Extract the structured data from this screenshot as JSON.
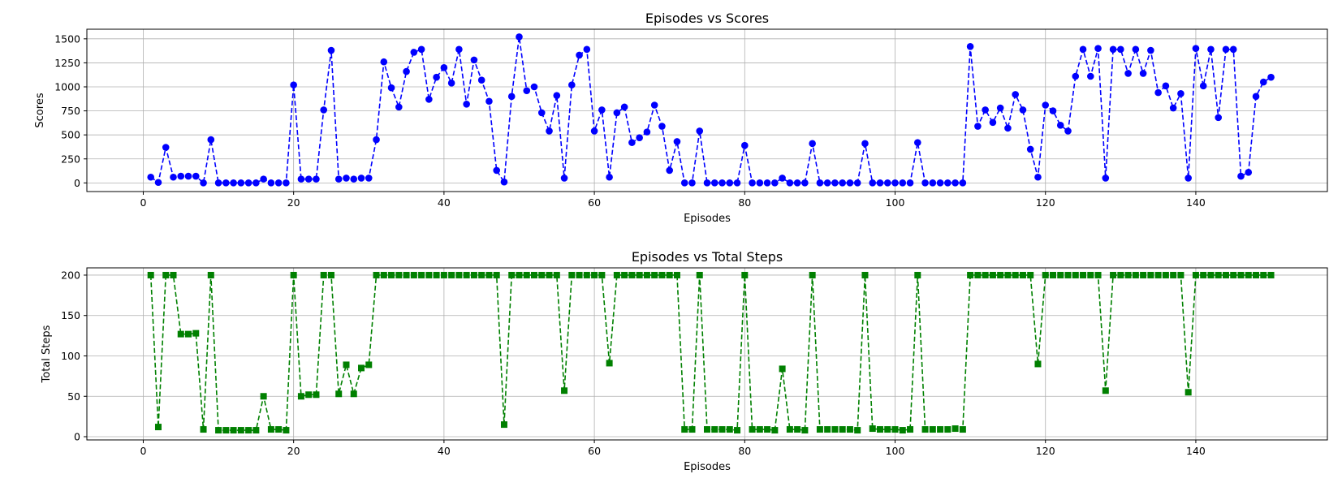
{
  "chart_data": [
    {
      "type": "line",
      "title": "Episodes vs Scores",
      "xlabel": "Episodes",
      "ylabel": "Scores",
      "xlim": [
        -7.5,
        157.5
      ],
      "ylim": [
        -90,
        1600
      ],
      "xticks": [
        0,
        20,
        40,
        60,
        80,
        100,
        120,
        140
      ],
      "yticks": [
        0,
        250,
        500,
        750,
        1000,
        1250,
        1500
      ],
      "grid": true,
      "color": "#0000ff",
      "marker": "circle",
      "line_style": "dashed",
      "series": [
        {
          "x": [
            1,
            2,
            3,
            4,
            5,
            6,
            7,
            8,
            9,
            10,
            11,
            12,
            13,
            14,
            15,
            16,
            17,
            18,
            19,
            20,
            21,
            22,
            23,
            24,
            25,
            26,
            27,
            28,
            29,
            30,
            31,
            32,
            33,
            34,
            35,
            36,
            37,
            38,
            39,
            40,
            41,
            42,
            43,
            44,
            45,
            46,
            47,
            48,
            49,
            50,
            51,
            52,
            53,
            54,
            55,
            56,
            57,
            58,
            59,
            60,
            61,
            62,
            63,
            64,
            65,
            66,
            67,
            68,
            69,
            70,
            71,
            72,
            73,
            74,
            75,
            76,
            77,
            78,
            79,
            80,
            81,
            82,
            83,
            84,
            85,
            86,
            87,
            88,
            89,
            90,
            91,
            92,
            93,
            94,
            95,
            96,
            97,
            98,
            99,
            100,
            101,
            102,
            103,
            104,
            105,
            106,
            107,
            108,
            109,
            110,
            111,
            112,
            113,
            114,
            115,
            116,
            117,
            118,
            119,
            120,
            121,
            122,
            123,
            124,
            125,
            126,
            127,
            128,
            129,
            130,
            131,
            132,
            133,
            134,
            135,
            136,
            137,
            138,
            139,
            140,
            141,
            142,
            143,
            144,
            145,
            146,
            147,
            148,
            149,
            150
          ],
          "y": [
            60,
            5,
            370,
            60,
            70,
            70,
            70,
            0,
            450,
            0,
            0,
            0,
            0,
            0,
            0,
            40,
            0,
            0,
            0,
            1020,
            40,
            40,
            40,
            760,
            1380,
            40,
            50,
            40,
            50,
            50,
            450,
            1260,
            990,
            790,
            1160,
            1360,
            1390,
            870,
            1100,
            1200,
            1040,
            1390,
            820,
            1280,
            1070,
            850,
            130,
            10,
            900,
            1520,
            960,
            1000,
            730,
            540,
            910,
            50,
            1020,
            1330,
            1390,
            540,
            760,
            60,
            730,
            790,
            420,
            470,
            530,
            810,
            590,
            130,
            430,
            0,
            0,
            540,
            0,
            0,
            0,
            0,
            0,
            390,
            0,
            0,
            0,
            0,
            50,
            0,
            0,
            0,
            410,
            0,
            0,
            0,
            0,
            0,
            0,
            410,
            0,
            0,
            0,
            0,
            0,
            0,
            420,
            0,
            0,
            0,
            0,
            0,
            0,
            1420,
            590,
            760,
            630,
            780,
            570,
            920,
            760,
            350,
            60,
            810,
            750,
            600,
            540,
            1110,
            1390,
            1110,
            1400,
            50,
            1390,
            1390,
            1140,
            1390,
            1140,
            1380,
            940,
            1010,
            780,
            930,
            50,
            1400,
            1010,
            1390,
            680,
            1390,
            1390,
            70,
            110,
            900,
            1050,
            1100
          ]
        }
      ]
    },
    {
      "type": "line",
      "title": "Episodes vs Total Steps",
      "xlabel": "Episodes",
      "ylabel": "Total Steps",
      "xlim": [
        -7.5,
        157.5
      ],
      "ylim": [
        -4,
        209
      ],
      "xticks": [
        0,
        20,
        40,
        60,
        80,
        100,
        120,
        140
      ],
      "yticks": [
        0,
        50,
        100,
        150,
        200
      ],
      "grid": true,
      "color": "#008000",
      "marker": "square",
      "line_style": "dashed",
      "series": [
        {
          "x": [
            1,
            2,
            3,
            4,
            5,
            6,
            7,
            8,
            9,
            10,
            11,
            12,
            13,
            14,
            15,
            16,
            17,
            18,
            19,
            20,
            21,
            22,
            23,
            24,
            25,
            26,
            27,
            28,
            29,
            30,
            31,
            32,
            33,
            34,
            35,
            36,
            37,
            38,
            39,
            40,
            41,
            42,
            43,
            44,
            45,
            46,
            47,
            48,
            49,
            50,
            51,
            52,
            53,
            54,
            55,
            56,
            57,
            58,
            59,
            60,
            61,
            62,
            63,
            64,
            65,
            66,
            67,
            68,
            69,
            70,
            71,
            72,
            73,
            74,
            75,
            76,
            77,
            78,
            79,
            80,
            81,
            82,
            83,
            84,
            85,
            86,
            87,
            88,
            89,
            90,
            91,
            92,
            93,
            94,
            95,
            96,
            97,
            98,
            99,
            100,
            101,
            102,
            103,
            104,
            105,
            106,
            107,
            108,
            109,
            110,
            111,
            112,
            113,
            114,
            115,
            116,
            117,
            118,
            119,
            120,
            121,
            122,
            123,
            124,
            125,
            126,
            127,
            128,
            129,
            130,
            131,
            132,
            133,
            134,
            135,
            136,
            137,
            138,
            139,
            140,
            141,
            142,
            143,
            144,
            145,
            146,
            147,
            148,
            149,
            150
          ],
          "y": [
            200,
            12,
            200,
            200,
            127,
            127,
            128,
            9,
            200,
            8,
            8,
            8,
            8,
            8,
            8,
            50,
            9,
            9,
            8,
            200,
            50,
            52,
            52,
            200,
            200,
            53,
            89,
            53,
            85,
            89,
            200,
            200,
            200,
            200,
            200,
            200,
            200,
            200,
            200,
            200,
            200,
            200,
            200,
            200,
            200,
            200,
            200,
            15,
            200,
            200,
            200,
            200,
            200,
            200,
            200,
            57,
            200,
            200,
            200,
            200,
            200,
            91,
            200,
            200,
            200,
            200,
            200,
            200,
            200,
            200,
            200,
            9,
            9,
            200,
            9,
            9,
            9,
            9,
            8,
            200,
            9,
            9,
            9,
            8,
            84,
            9,
            9,
            8,
            200,
            9,
            9,
            9,
            9,
            9,
            8,
            200,
            10,
            9,
            9,
            9,
            8,
            9,
            200,
            9,
            9,
            9,
            9,
            10,
            9,
            200,
            200,
            200,
            200,
            200,
            200,
            200,
            200,
            200,
            90,
            200,
            200,
            200,
            200,
            200,
            200,
            200,
            200,
            57,
            200,
            200,
            200,
            200,
            200,
            200,
            200,
            200,
            200,
            200,
            55,
            200,
            200,
            200,
            200,
            200,
            200,
            200,
            200,
            200,
            200,
            200
          ]
        }
      ]
    }
  ]
}
